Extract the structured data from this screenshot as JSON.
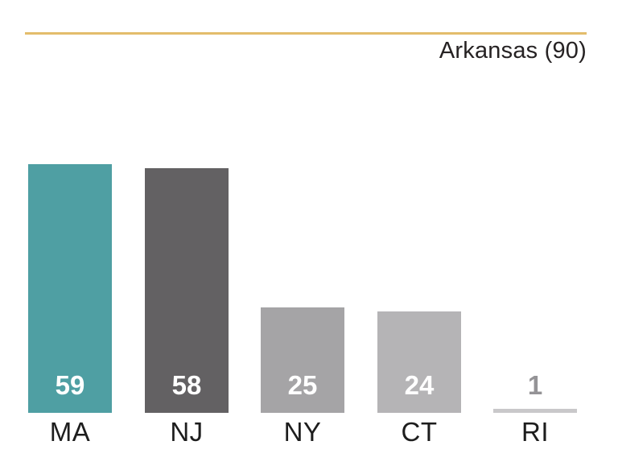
{
  "header": {
    "title": "Arkansas (90)",
    "rule_color": "#e3bd6c"
  },
  "chart_data": {
    "type": "bar",
    "title": "Arkansas (90)",
    "categories": [
      "MA",
      "NJ",
      "NY",
      "CT",
      "RI"
    ],
    "values": [
      59,
      58,
      25,
      24,
      1
    ],
    "bar_colors": [
      "#4f9fa3",
      "#636163",
      "#a5a4a6",
      "#b5b4b6",
      "#c9c8ca"
    ],
    "value_label_colors": [
      "#ffffff",
      "#ffffff",
      "#ffffff",
      "#ffffff",
      "#949396"
    ],
    "xlabel": "",
    "ylabel": "",
    "ylim": [
      0,
      59
    ],
    "grid": false,
    "legend": false,
    "value_labels_shown": true,
    "axis_lines_shown": false
  }
}
